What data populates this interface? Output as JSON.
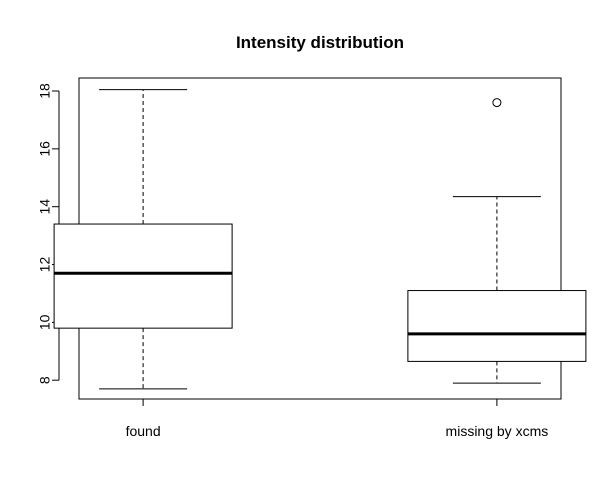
{
  "chart_data": {
    "type": "boxplot",
    "title": "Intensity distribution",
    "xlabel": "",
    "ylabel": "",
    "ylim": [
      7.35,
      18.45
    ],
    "yticks": [
      8,
      10,
      12,
      14,
      16,
      18
    ],
    "grid": false,
    "legend": "none",
    "categories": [
      "found",
      "missing by xcms"
    ],
    "boxes": [
      {
        "name": "found",
        "whisker_low": 7.7,
        "q1": 9.8,
        "median": 11.7,
        "q3": 13.4,
        "whisker_high": 18.05,
        "outliers": []
      },
      {
        "name": "missing by xcms",
        "whisker_low": 7.9,
        "q1": 8.65,
        "median": 9.6,
        "q3": 11.1,
        "whisker_high": 14.35,
        "outliers": [
          17.6
        ]
      }
    ]
  }
}
